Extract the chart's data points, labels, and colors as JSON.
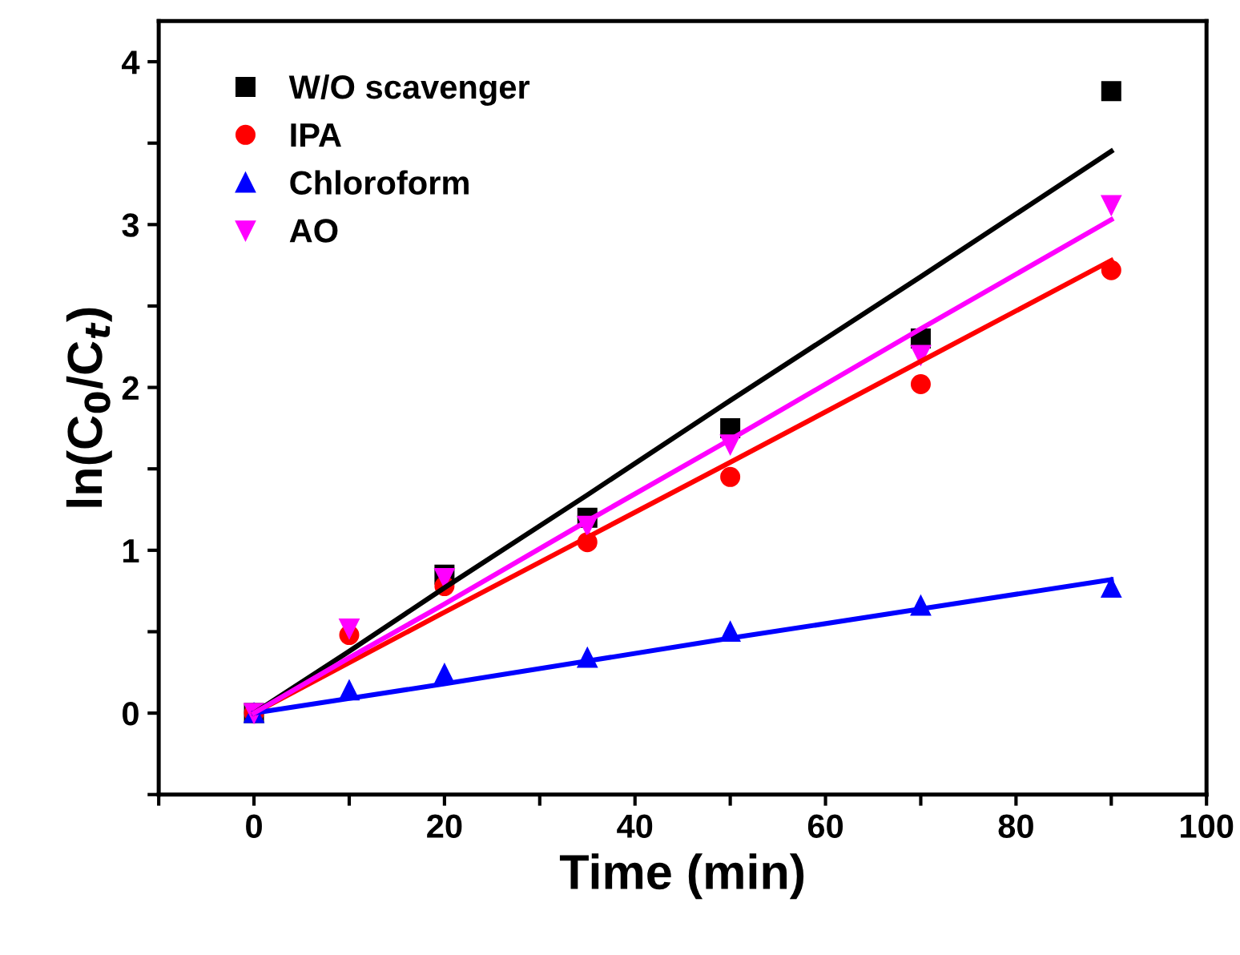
{
  "chart_data": {
    "type": "scatter",
    "xlabel": "Time (min)",
    "ylabel": "ln(C$_{0}$/C$_{t}$)",
    "x": [
      0,
      10,
      20,
      35,
      50,
      70,
      90
    ],
    "series": [
      {
        "name": "W/O scavenger",
        "color": "#000000",
        "marker": "square",
        "values": [
          0,
          null,
          0.85,
          1.2,
          1.75,
          2.3,
          3.82
        ]
      },
      {
        "name": "IPA",
        "color": "#ff0000",
        "marker": "circle",
        "values": [
          0,
          0.48,
          0.78,
          1.05,
          1.45,
          2.02,
          2.72
        ]
      },
      {
        "name": "Chloroform",
        "color": "#0000ff",
        "marker": "triangle",
        "values": [
          0,
          0.14,
          0.24,
          0.34,
          0.5,
          0.66,
          0.77
        ]
      },
      {
        "name": "AO",
        "color": "#ff00ff",
        "marker": "triangle_down",
        "values": [
          0,
          0.52,
          0.83,
          1.15,
          1.65,
          2.2,
          3.12
        ]
      },
      {
        "type": "line",
        "color": "#000000",
        "values": [
          0,
          0.38,
          0.77,
          1.34,
          1.92,
          2.68,
          3.45
        ]
      },
      {
        "type": "line",
        "color": "#ff0000",
        "values": [
          0,
          0.31,
          0.62,
          1.08,
          1.54,
          2.16,
          2.78
        ]
      },
      {
        "type": "line",
        "color": "#0000ff",
        "values": [
          0,
          0.09,
          0.18,
          0.32,
          0.46,
          0.64,
          0.82
        ]
      },
      {
        "type": "line",
        "color": "#ff00ff",
        "values": [
          0,
          0.34,
          0.67,
          1.18,
          1.68,
          2.36,
          3.03
        ]
      }
    ],
    "xlim": [
      -10,
      100
    ],
    "ylim": [
      -0.5,
      4.25
    ],
    "xticks": [
      {
        "value": -10,
        "label": null
      },
      0,
      {
        "value": 10,
        "label": null
      },
      20,
      {
        "value": 30,
        "label": null
      },
      40,
      {
        "value": 50,
        "label": null
      },
      60,
      {
        "value": 70,
        "label": null
      },
      80,
      {
        "value": 90,
        "label": null
      },
      100
    ],
    "yticks": [
      {
        "value": -0.5,
        "label": null
      },
      0,
      {
        "value": 0.5,
        "label": null
      },
      1,
      {
        "value": 1.5,
        "label": null
      },
      2,
      {
        "value": 2.5,
        "label": null
      },
      3,
      {
        "value": 3.5,
        "label": null
      },
      4
    ],
    "legend": "top left",
    "grid": false
  }
}
